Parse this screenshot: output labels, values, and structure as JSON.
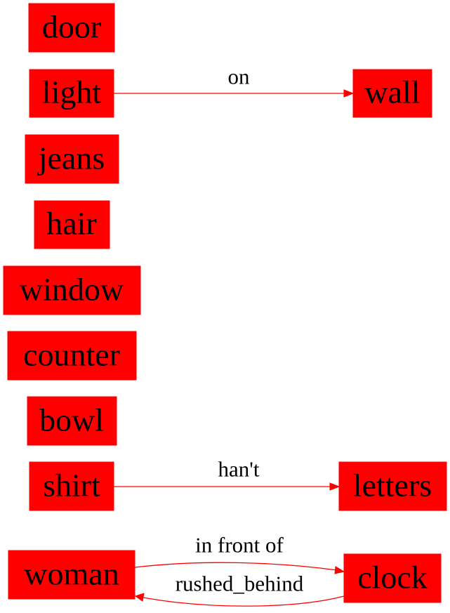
{
  "colors": {
    "node_fill": "#ff0000",
    "edge": "#ff0000",
    "text": "#000000",
    "background": "#ffffff"
  },
  "nodes": {
    "door": "door",
    "light": "light",
    "wall": "wall",
    "jeans": "jeans",
    "hair": "hair",
    "window": "window",
    "counter": "counter",
    "bowl": "bowl",
    "shirt": "shirt",
    "letters": "letters",
    "woman": "woman",
    "clock": "clock"
  },
  "edges": {
    "light_wall": {
      "from": "light",
      "to": "wall",
      "label": "on"
    },
    "shirt_letters": {
      "from": "shirt",
      "to": "letters",
      "label": "han't"
    },
    "woman_clock": {
      "from": "woman",
      "to": "clock",
      "label": "in front of"
    },
    "clock_woman": {
      "from": "clock",
      "to": "woman",
      "label": "rushed_behind"
    }
  }
}
